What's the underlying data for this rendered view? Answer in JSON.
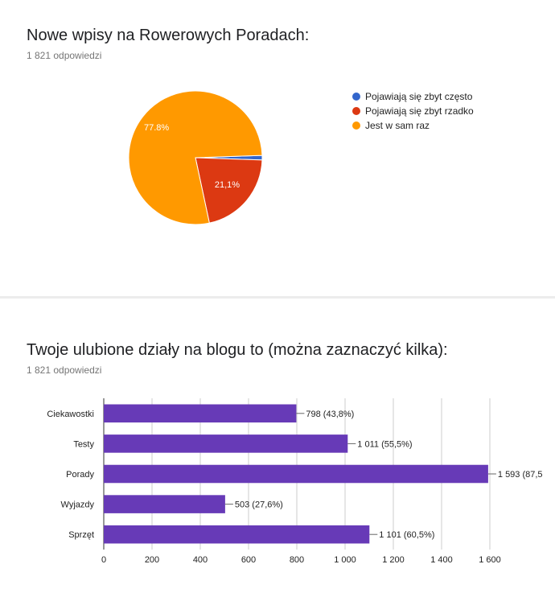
{
  "pie_section": {
    "title": "Nowe wpisy na Rowerowych Poradach:",
    "responses": "1 821 odpowiedzi"
  },
  "bar_section": {
    "title": "Twoje ulubione działy na blogu to (można zaznaczyć kilka):",
    "responses": "1 821 odpowiedzi"
  },
  "chart_data": [
    {
      "type": "pie",
      "categories": [
        "Pojawiają się zbyt często",
        "Pojawiają się zbyt rzadko",
        "Jest w sam raz"
      ],
      "values": [
        1.1,
        21.1,
        77.8
      ],
      "slice_labels": [
        "",
        "21,1%",
        "77.8%"
      ],
      "colors": [
        "#3366cc",
        "#dc3912",
        "#ff9900"
      ],
      "legend_position": "right"
    },
    {
      "type": "bar",
      "orientation": "horizontal",
      "categories": [
        "Ciekawostki",
        "Testy",
        "Porady",
        "Wyjazdy",
        "Sprzęt"
      ],
      "values": [
        798,
        1011,
        1593,
        503,
        1101
      ],
      "data_labels": [
        "798 (43,8%)",
        "1 011 (55,5%)",
        "1 593 (87,5",
        "503 (27,6%)",
        "1 101 (60,5%)"
      ],
      "x_ticks": [
        "0",
        "200",
        "400",
        "600",
        "800",
        "1 000",
        "1 200",
        "1 400",
        "1 600"
      ],
      "xlim": [
        0,
        1600
      ],
      "color": "#673ab7",
      "grid": true
    }
  ]
}
